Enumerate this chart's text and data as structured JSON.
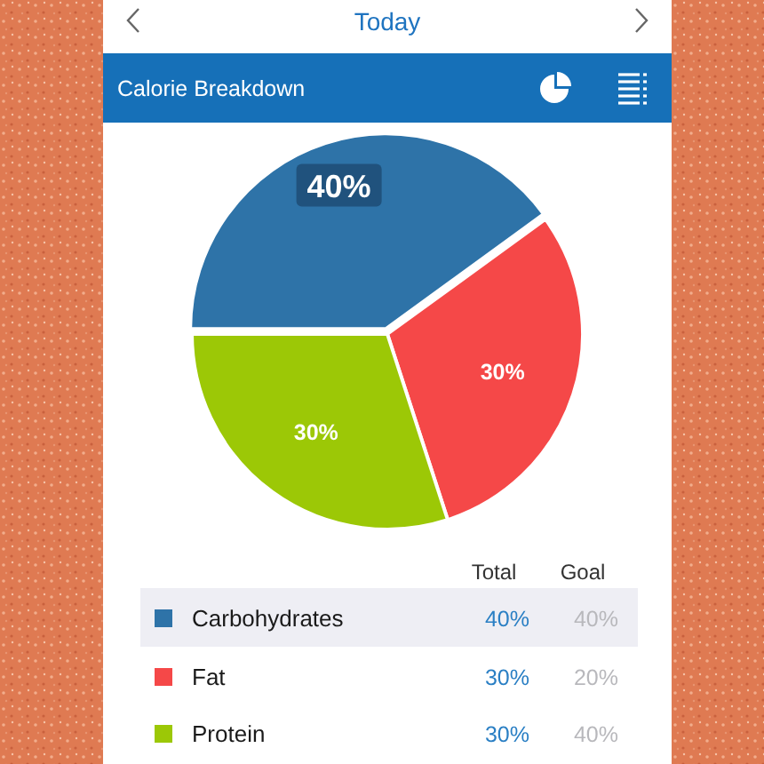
{
  "chart_data": {
    "type": "pie",
    "title": "Calorie Breakdown",
    "annotations": [
      "Today",
      "Total",
      "Goal",
      "40%",
      "20%",
      "40%"
    ],
    "categories": [
      "Carbohydrates",
      "Fat",
      "Protein"
    ],
    "colors": [
      "#2e73a8",
      "#f54848",
      "#9cc806"
    ],
    "values": [
      40,
      30,
      30
    ],
    "value_labels": [
      "40%",
      "30%",
      "30%"
    ],
    "legend": "bottom"
  }
}
